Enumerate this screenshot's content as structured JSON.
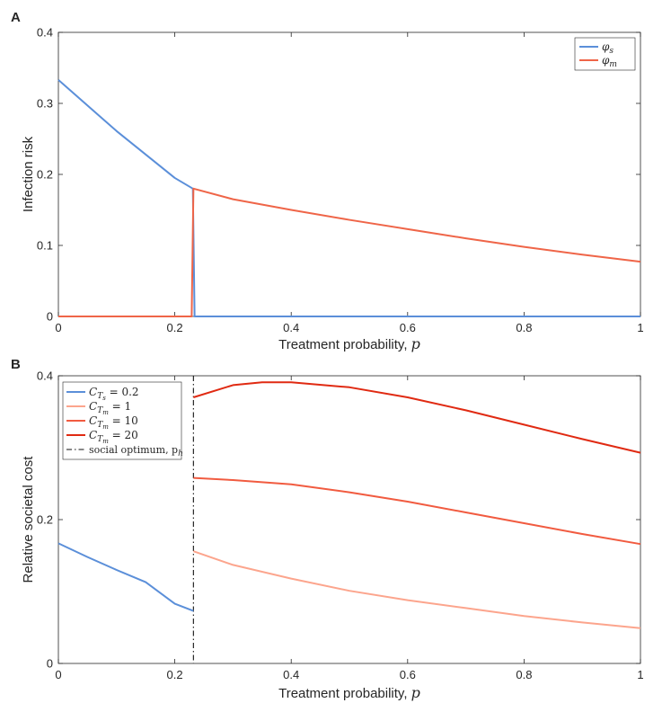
{
  "chart_data": [
    {
      "type": "line",
      "panel_label": "A",
      "xlabel": "Treatment probability,",
      "xlabel_symbol": "p",
      "ylabel": "Infection risk",
      "xlim": [
        0,
        1
      ],
      "ylim": [
        0,
        0.4
      ],
      "xticks": [
        "0",
        "0.2",
        "0.4",
        "0.6",
        "0.8",
        "1"
      ],
      "xtick_values": [
        0,
        0.2,
        0.4,
        0.6,
        0.8,
        1
      ],
      "yticks": [
        "0",
        "0.1",
        "0.2",
        "0.3",
        "0.4"
      ],
      "ytick_values": [
        0,
        0.1,
        0.2,
        0.3,
        0.4
      ],
      "legend_position": "top-right",
      "series": [
        {
          "name": "φs",
          "sym": "φ",
          "sub": "s",
          "color": "#5b8fd9",
          "points": [
            [
              0,
              0.333
            ],
            [
              0.1,
              0.261
            ],
            [
              0.2,
              0.195
            ],
            [
              0.231,
              0.18
            ],
            [
              0.234,
              0.0
            ],
            [
              1,
              0.0
            ]
          ]
        },
        {
          "name": "φm",
          "sym": "φ",
          "sub": "m",
          "color": "#ef6548",
          "points": [
            [
              0,
              0.0
            ],
            [
              0.229,
              0.0
            ],
            [
              0.232,
              0.18
            ],
            [
              0.3,
              0.165
            ],
            [
              0.4,
              0.15
            ],
            [
              0.5,
              0.136
            ],
            [
              0.6,
              0.123
            ],
            [
              0.7,
              0.11
            ],
            [
              0.8,
              0.098
            ],
            [
              0.9,
              0.087
            ],
            [
              1,
              0.077
            ]
          ]
        }
      ]
    },
    {
      "type": "line",
      "panel_label": "B",
      "xlabel": "Treatment probability,",
      "xlabel_symbol": "p",
      "ylabel": "Relative societal cost",
      "xlim": [
        0,
        1
      ],
      "ylim": [
        0,
        0.4
      ],
      "xticks": [
        "0",
        "0.2",
        "0.4",
        "0.6",
        "0.8",
        "1"
      ],
      "xtick_values": [
        0,
        0.2,
        0.4,
        0.6,
        0.8,
        1
      ],
      "yticks": [
        "0",
        "0.2",
        "0.4"
      ],
      "ytick_values": [
        0,
        0.2,
        0.4
      ],
      "legend_position": "top-left",
      "vline": {
        "x": 0.232,
        "label": "social optimum, p",
        "label_sub": "h"
      },
      "series": [
        {
          "name": "CTs = 0.2",
          "sym": "C",
          "sub": "Ts",
          "value_text": " = 0.2",
          "color": "#5b8fd9",
          "points": [
            [
              0,
              0.167
            ],
            [
              0.05,
              0.148
            ],
            [
              0.1,
              0.13
            ],
            [
              0.15,
              0.113
            ],
            [
              0.2,
              0.083
            ],
            [
              0.232,
              0.073
            ]
          ]
        },
        {
          "name": "CTm = 1",
          "sym": "C",
          "sub": "Tm",
          "value_text": " = 1",
          "color": "#fca58d",
          "points": [
            [
              0.232,
              0.156
            ],
            [
              0.3,
              0.137
            ],
            [
              0.4,
              0.118
            ],
            [
              0.5,
              0.101
            ],
            [
              0.6,
              0.088
            ],
            [
              0.7,
              0.077
            ],
            [
              0.8,
              0.066
            ],
            [
              0.9,
              0.057
            ],
            [
              1,
              0.049
            ]
          ]
        },
        {
          "name": "CTm = 10",
          "sym": "C",
          "sub": "Tm",
          "value_text": " = 10",
          "color": "#f15b40",
          "points": [
            [
              0.232,
              0.258
            ],
            [
              0.3,
              0.255
            ],
            [
              0.4,
              0.249
            ],
            [
              0.5,
              0.238
            ],
            [
              0.6,
              0.225
            ],
            [
              0.7,
              0.21
            ],
            [
              0.8,
              0.195
            ],
            [
              0.9,
              0.18
            ],
            [
              1,
              0.166
            ]
          ]
        },
        {
          "name": "CTm = 20",
          "sym": "C",
          "sub": "Tm",
          "value_text": " = 20",
          "color": "#e02a12",
          "points": [
            [
              0.232,
              0.37
            ],
            [
              0.3,
              0.387
            ],
            [
              0.35,
              0.391
            ],
            [
              0.4,
              0.391
            ],
            [
              0.5,
              0.384
            ],
            [
              0.6,
              0.37
            ],
            [
              0.7,
              0.352
            ],
            [
              0.8,
              0.332
            ],
            [
              0.9,
              0.312
            ],
            [
              1,
              0.293
            ]
          ]
        }
      ]
    }
  ]
}
